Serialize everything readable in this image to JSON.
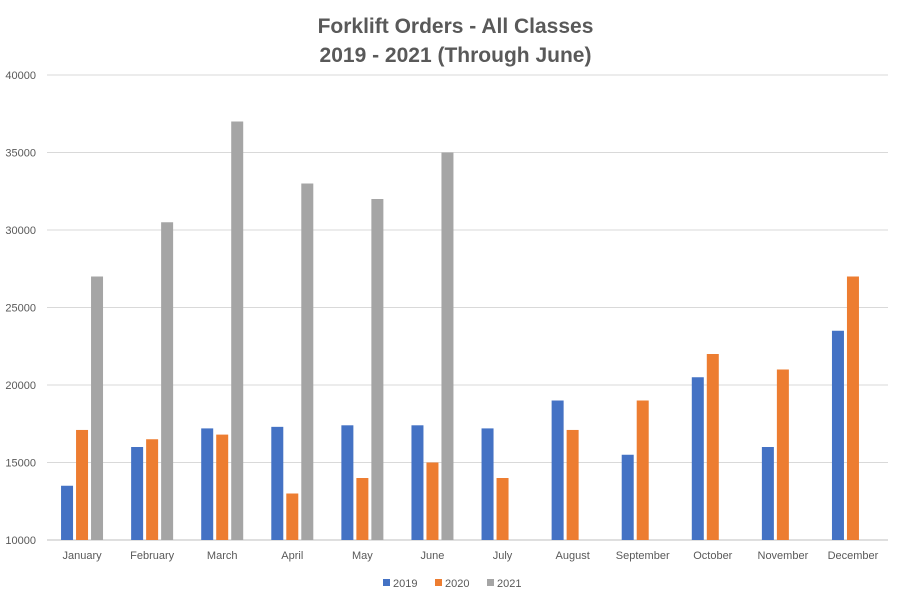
{
  "chart_data": {
    "type": "bar",
    "title": "Forklift Orders - All Classes",
    "subtitle": "2019 - 2021 (Through June)",
    "xlabel": "",
    "ylabel": "",
    "ylim": [
      10000,
      40000
    ],
    "yticks": [
      10000,
      15000,
      20000,
      25000,
      30000,
      35000,
      40000
    ],
    "grid": true,
    "legend_position": "bottom",
    "categories": [
      "January",
      "February",
      "March",
      "April",
      "May",
      "June",
      "July",
      "August",
      "September",
      "October",
      "November",
      "December"
    ],
    "series": [
      {
        "name": "2019",
        "color": "#4472C4",
        "values": [
          13500,
          16000,
          17200,
          17300,
          17400,
          17400,
          17200,
          19000,
          15500,
          20500,
          16000,
          23500
        ]
      },
      {
        "name": "2020",
        "color": "#ED7D31",
        "values": [
          17100,
          16500,
          16800,
          13000,
          14000,
          15000,
          14000,
          17100,
          19000,
          22000,
          21000,
          27000
        ]
      },
      {
        "name": "2021",
        "color": "#A5A5A5",
        "values": [
          27000,
          30500,
          37000,
          33000,
          32000,
          35000,
          null,
          null,
          null,
          null,
          null,
          null
        ]
      }
    ]
  }
}
